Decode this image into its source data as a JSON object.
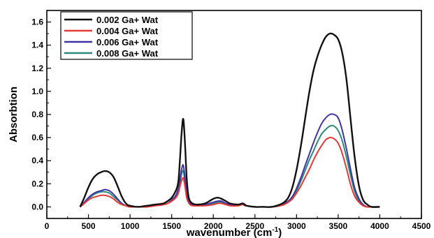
{
  "chart_data": {
    "type": "line",
    "xlabel": "wavenumber (cm",
    "xlabel_sup": "-1",
    "xlabel_close": ")",
    "ylabel": "Absorbtion",
    "xlim": [
      0,
      4500
    ],
    "ylim": [
      -0.1,
      1.7
    ],
    "x_ticks": [
      0,
      500,
      1000,
      1500,
      2000,
      2500,
      3000,
      3500,
      4000,
      4500
    ],
    "y_ticks": [
      0.0,
      0.2,
      0.4,
      0.6,
      0.8,
      1.0,
      1.2,
      1.4,
      1.6
    ],
    "legend_position": "top-left",
    "grid": false,
    "x": [
      400,
      450,
      500,
      550,
      600,
      650,
      700,
      750,
      800,
      850,
      900,
      950,
      1000,
      1100,
      1200,
      1300,
      1400,
      1450,
      1500,
      1550,
      1580,
      1600,
      1620,
      1640,
      1660,
      1680,
      1700,
      1720,
      1750,
      1800,
      1900,
      2000,
      2050,
      2100,
      2150,
      2200,
      2300,
      2350,
      2380,
      2400,
      2500,
      2600,
      2700,
      2800,
      2850,
      2900,
      2950,
      3000,
      3050,
      3100,
      3150,
      3200,
      3250,
      3300,
      3350,
      3400,
      3450,
      3500,
      3550,
      3600,
      3650,
      3700,
      3750,
      3800,
      3850,
      3900,
      4000
    ],
    "series": [
      {
        "name": "0.002 Ga+ Wat",
        "color": "#111111",
        "values": [
          0.0,
          0.08,
          0.17,
          0.24,
          0.28,
          0.3,
          0.31,
          0.3,
          0.26,
          0.18,
          0.09,
          0.03,
          0.01,
          0.0,
          0.01,
          0.02,
          0.03,
          0.05,
          0.08,
          0.14,
          0.22,
          0.42,
          0.65,
          0.76,
          0.55,
          0.25,
          0.1,
          0.05,
          0.03,
          0.02,
          0.03,
          0.07,
          0.08,
          0.07,
          0.05,
          0.03,
          0.02,
          0.03,
          0.02,
          0.01,
          0.0,
          0.0,
          0.0,
          0.02,
          0.04,
          0.08,
          0.17,
          0.32,
          0.52,
          0.75,
          0.98,
          1.17,
          1.3,
          1.4,
          1.47,
          1.5,
          1.49,
          1.45,
          1.33,
          1.1,
          0.75,
          0.42,
          0.18,
          0.06,
          0.02,
          0.0,
          0.0
        ]
      },
      {
        "name": "0.004 Ga+ Wat",
        "color": "#e53935",
        "values": [
          0.0,
          0.03,
          0.06,
          0.08,
          0.09,
          0.1,
          0.1,
          0.09,
          0.07,
          0.04,
          0.02,
          0.01,
          0.0,
          0.0,
          0.0,
          0.01,
          0.02,
          0.03,
          0.05,
          0.08,
          0.12,
          0.18,
          0.23,
          0.25,
          0.18,
          0.08,
          0.04,
          0.02,
          0.01,
          0.01,
          0.01,
          0.02,
          0.03,
          0.03,
          0.02,
          0.01,
          0.01,
          0.02,
          0.01,
          0.01,
          0.0,
          0.0,
          0.0,
          0.01,
          0.02,
          0.04,
          0.07,
          0.12,
          0.18,
          0.25,
          0.32,
          0.4,
          0.47,
          0.53,
          0.58,
          0.6,
          0.59,
          0.55,
          0.46,
          0.33,
          0.19,
          0.09,
          0.04,
          0.01,
          0.0,
          0.0,
          0.0
        ]
      },
      {
        "name": "0.006 Ga+ Wat",
        "color": "#3f33a6",
        "values": [
          0.0,
          0.04,
          0.08,
          0.11,
          0.13,
          0.14,
          0.15,
          0.14,
          0.11,
          0.07,
          0.03,
          0.01,
          0.0,
          0.0,
          0.0,
          0.01,
          0.02,
          0.03,
          0.06,
          0.1,
          0.16,
          0.24,
          0.33,
          0.36,
          0.25,
          0.11,
          0.05,
          0.03,
          0.02,
          0.01,
          0.02,
          0.04,
          0.05,
          0.05,
          0.03,
          0.02,
          0.02,
          0.03,
          0.02,
          0.01,
          0.0,
          0.0,
          0.0,
          0.01,
          0.03,
          0.05,
          0.09,
          0.16,
          0.25,
          0.35,
          0.45,
          0.55,
          0.64,
          0.72,
          0.77,
          0.8,
          0.8,
          0.77,
          0.66,
          0.5,
          0.32,
          0.16,
          0.07,
          0.02,
          0.0,
          0.0,
          0.0
        ]
      },
      {
        "name": "0.008 Ga+ Wat",
        "color": "#2a8a7a",
        "values": [
          0.0,
          0.03,
          0.07,
          0.1,
          0.12,
          0.13,
          0.13,
          0.12,
          0.09,
          0.06,
          0.03,
          0.01,
          0.0,
          0.0,
          0.0,
          0.01,
          0.02,
          0.03,
          0.05,
          0.09,
          0.14,
          0.21,
          0.29,
          0.31,
          0.22,
          0.1,
          0.05,
          0.03,
          0.02,
          0.01,
          0.02,
          0.03,
          0.04,
          0.04,
          0.03,
          0.02,
          0.02,
          0.03,
          0.02,
          0.01,
          0.0,
          0.0,
          0.0,
          0.01,
          0.03,
          0.05,
          0.08,
          0.14,
          0.22,
          0.31,
          0.4,
          0.48,
          0.56,
          0.63,
          0.67,
          0.7,
          0.7,
          0.66,
          0.57,
          0.43,
          0.27,
          0.13,
          0.05,
          0.01,
          0.0,
          0.0,
          0.0
        ]
      }
    ]
  }
}
